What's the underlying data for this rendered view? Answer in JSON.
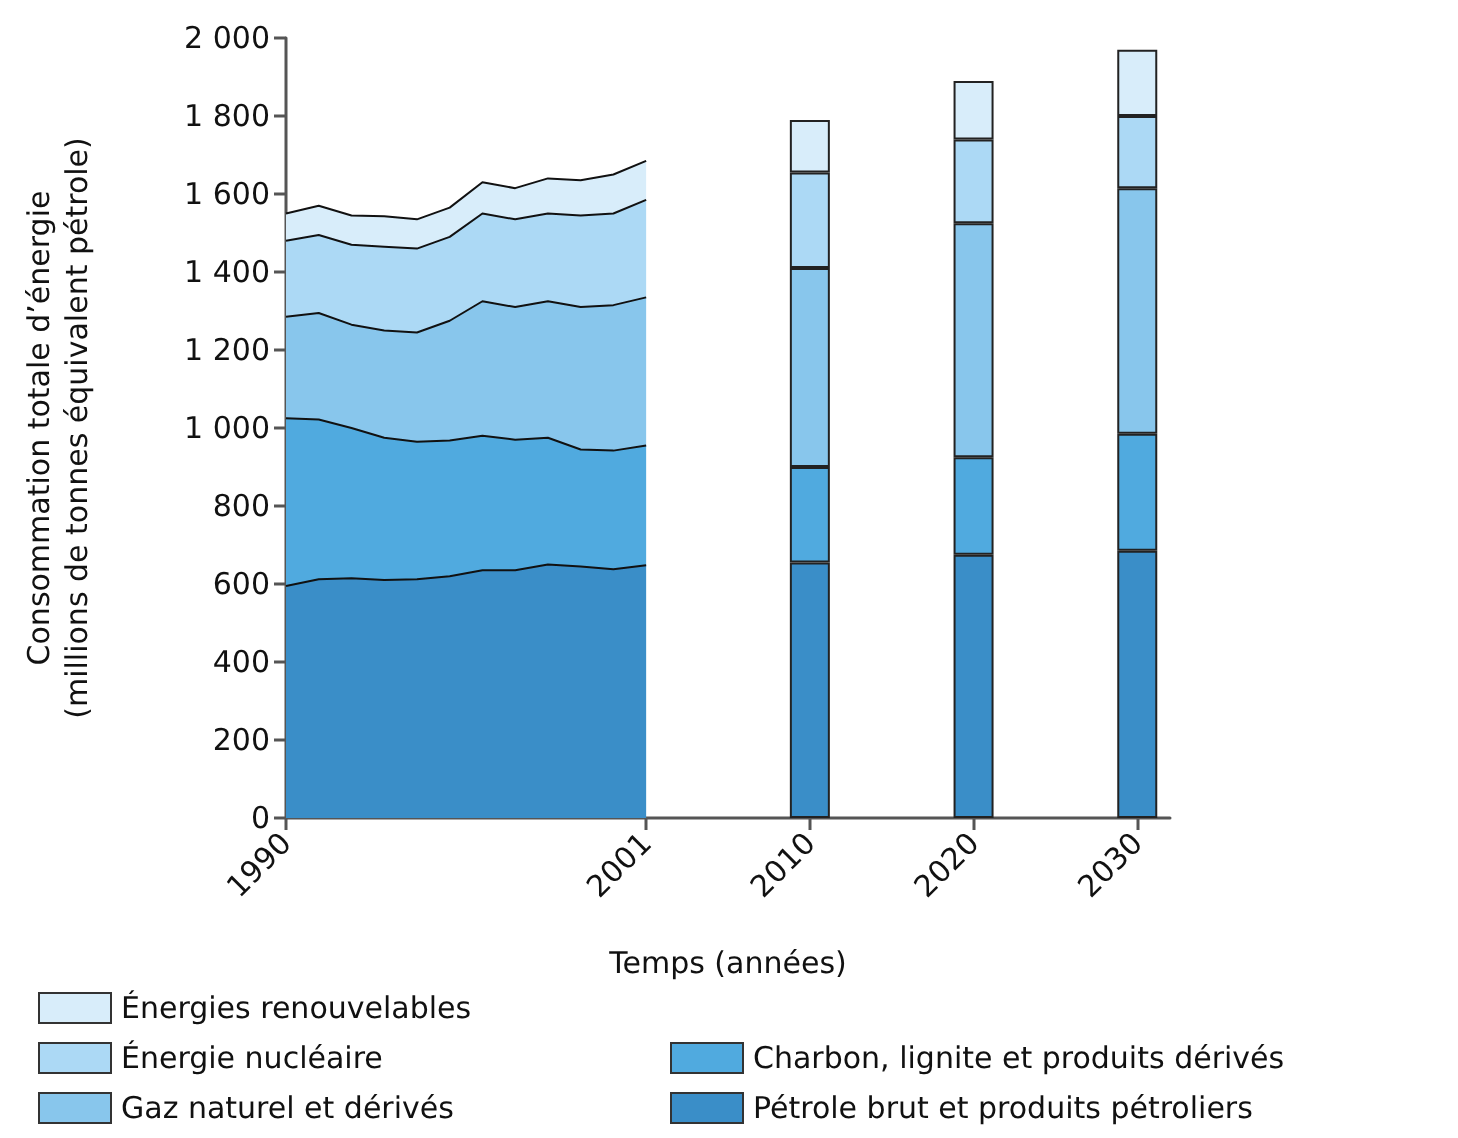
{
  "chart_data": {
    "type": "area",
    "stacked": true,
    "xlabel": "Temps (années)",
    "ylabel": "Consommation totale d’énergie\n(millions de tonnes équivalent pétrole)",
    "categories": [
      "1990",
      null,
      null,
      null,
      null,
      null,
      null,
      null,
      null,
      null,
      null,
      "2001",
      null,
      null,
      null,
      null,
      "2010",
      null,
      null,
      null,
      null,
      "2020",
      null,
      null,
      null,
      null,
      "2030",
      null
    ],
    "ylim": [
      0,
      2000
    ],
    "yticks": [
      0,
      200,
      400,
      600,
      800,
      {
        "value": 1000,
        "label": "1 000"
      },
      {
        "value": 1200,
        "label": "1 200"
      },
      {
        "value": 1400,
        "label": "1 400"
      },
      {
        "value": 1600,
        "label": "1 600"
      },
      {
        "value": 1800,
        "label": "1 800"
      },
      {
        "value": 2000,
        "label": "2 000"
      }
    ],
    "grid": false,
    "legend": "bottom",
    "series": [
      {
        "name": "Pétrole brut et produits pétroliers",
        "color": "#3a8ec8",
        "values": [
          595,
          612,
          615,
          610,
          612,
          620,
          635,
          635,
          650,
          645,
          638,
          648,
          null,
          null,
          null,
          null,
          null,
          null,
          null,
          null,
          null,
          null,
          null,
          null,
          null,
          null,
          null,
          null
        ]
      },
      {
        "name": "Charbon, lignite et produits dérivés",
        "color": "#50aadf",
        "values": [
          430,
          410,
          385,
          365,
          353,
          348,
          345,
          335,
          325,
          300,
          304,
          307,
          null,
          null,
          null,
          null,
          null,
          null,
          null,
          null,
          null,
          null,
          null,
          null,
          null,
          null,
          null,
          null
        ]
      },
      {
        "name": "Gaz naturel et dérivés",
        "color": "#88c6ec",
        "values": [
          260,
          273,
          265,
          275,
          280,
          307,
          345,
          340,
          350,
          365,
          373,
          380,
          null,
          null,
          null,
          null,
          null,
          null,
          null,
          null,
          null,
          null,
          null,
          null,
          null,
          null,
          null,
          null
        ]
      },
      {
        "name": "Énergie nucléaire",
        "color": "#acd9f5",
        "values": [
          195,
          200,
          205,
          215,
          215,
          215,
          225,
          225,
          225,
          235,
          235,
          250,
          null,
          null,
          null,
          null,
          null,
          null,
          null,
          null,
          null,
          null,
          null,
          null,
          null,
          null,
          null,
          null
        ]
      },
      {
        "name": "Énergies renouvelables",
        "color": "#d8edfa",
        "values": [
          70,
          75,
          75,
          78,
          75,
          75,
          80,
          80,
          90,
          90,
          100,
          100,
          null,
          null,
          null,
          null,
          null,
          null,
          null,
          null,
          null,
          null,
          null,
          null,
          null,
          null,
          null,
          null
        ]
      },
      {
        "type": "bar",
        "color": "#3a8ec8",
        "values": [
          null,
          null,
          null,
          null,
          null,
          null,
          null,
          null,
          null,
          null,
          null,
          null,
          null,
          null,
          null,
          null,
          655,
          null,
          null,
          null,
          null,
          675,
          null,
          null,
          null,
          null,
          685,
          null
        ]
      },
      {
        "type": "bar",
        "color": "#50aadf",
        "values": [
          null,
          null,
          null,
          null,
          null,
          null,
          null,
          null,
          null,
          null,
          null,
          null,
          null,
          null,
          null,
          null,
          245,
          null,
          null,
          null,
          null,
          250,
          null,
          null,
          null,
          null,
          300,
          null
        ]
      },
      {
        "type": "bar",
        "color": "#88c6ec",
        "values": [
          null,
          null,
          null,
          null,
          null,
          null,
          null,
          null,
          null,
          null,
          null,
          null,
          null,
          null,
          null,
          null,
          510,
          null,
          null,
          null,
          null,
          600,
          null,
          null,
          null,
          null,
          630,
          null
        ]
      },
      {
        "type": "bar",
        "color": "#acd9f5",
        "values": [
          null,
          null,
          null,
          null,
          null,
          null,
          null,
          null,
          null,
          null,
          null,
          null,
          null,
          null,
          null,
          null,
          245,
          null,
          null,
          null,
          null,
          215,
          null,
          null,
          null,
          null,
          185,
          null
        ]
      },
      {
        "type": "bar",
        "color": "#d8edfa",
        "values": [
          null,
          null,
          null,
          null,
          null,
          null,
          null,
          null,
          null,
          null,
          null,
          null,
          null,
          null,
          null,
          null,
          135,
          null,
          null,
          null,
          null,
          150,
          null,
          null,
          null,
          null,
          170,
          null
        ]
      }
    ]
  }
}
